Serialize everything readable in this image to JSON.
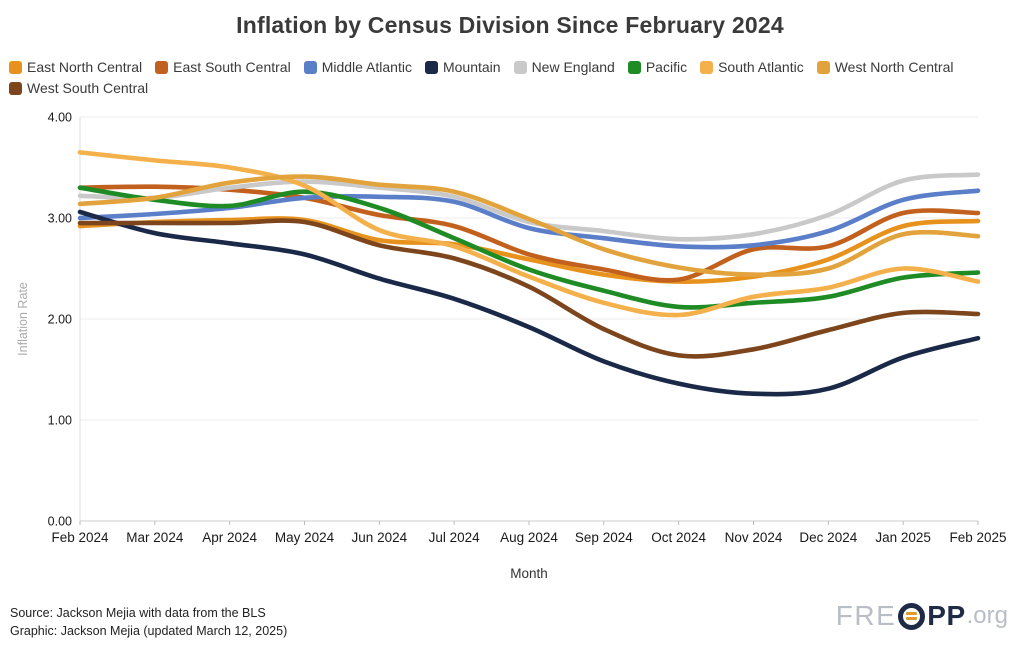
{
  "title": "Inflation by Census Division Since February 2024",
  "chart_data": {
    "type": "line",
    "x": [
      "Feb 2024",
      "Mar 2024",
      "Apr 2024",
      "May 2024",
      "Jun 2024",
      "Jul 2024",
      "Aug 2024",
      "Sep 2024",
      "Oct 2024",
      "Nov 2024",
      "Dec 2024",
      "Jan 2025",
      "Feb 2025"
    ],
    "series": [
      {
        "name": "East North Central",
        "color": "#e8921e",
        "values": [
          2.92,
          2.96,
          2.98,
          2.98,
          2.78,
          2.74,
          2.59,
          2.44,
          2.37,
          2.42,
          2.59,
          2.92,
          2.97
        ]
      },
      {
        "name": "East South Central",
        "color": "#c2611d",
        "values": [
          3.3,
          3.31,
          3.28,
          3.2,
          3.03,
          2.92,
          2.64,
          2.49,
          2.39,
          2.69,
          2.72,
          3.05,
          3.05
        ]
      },
      {
        "name": "Middle Atlantic",
        "color": "#5b7ec9",
        "values": [
          3.0,
          3.04,
          3.1,
          3.2,
          3.21,
          3.16,
          2.9,
          2.8,
          2.72,
          2.73,
          2.87,
          3.18,
          3.27
        ]
      },
      {
        "name": "Mountain",
        "color": "#1b2949",
        "values": [
          3.06,
          2.85,
          2.75,
          2.64,
          2.4,
          2.2,
          1.92,
          1.58,
          1.36,
          1.26,
          1.31,
          1.62,
          1.81
        ]
      },
      {
        "name": "New England",
        "color": "#c9c9c9",
        "values": [
          3.22,
          3.2,
          3.3,
          3.36,
          3.3,
          3.21,
          2.96,
          2.87,
          2.79,
          2.84,
          3.03,
          3.37,
          3.43
        ]
      },
      {
        "name": "Pacific",
        "color": "#1f8b24",
        "values": [
          3.3,
          3.18,
          3.12,
          3.26,
          3.1,
          2.8,
          2.49,
          2.28,
          2.12,
          2.16,
          2.22,
          2.41,
          2.46
        ]
      },
      {
        "name": "South Atlantic",
        "color": "#f4b04a",
        "values": [
          3.65,
          3.57,
          3.5,
          3.32,
          2.88,
          2.72,
          2.42,
          2.16,
          2.04,
          2.22,
          2.31,
          2.5,
          2.37
        ]
      },
      {
        "name": "West North Central",
        "color": "#e2a33c",
        "values": [
          3.14,
          3.2,
          3.35,
          3.41,
          3.33,
          3.26,
          2.99,
          2.69,
          2.51,
          2.44,
          2.5,
          2.84,
          2.82
        ]
      },
      {
        "name": "West South Central",
        "color": "#7d451b",
        "values": [
          2.95,
          2.95,
          2.95,
          2.96,
          2.73,
          2.6,
          2.32,
          1.9,
          1.64,
          1.7,
          1.89,
          2.06,
          2.05
        ]
      }
    ],
    "title": "Inflation by Census Division Since February 2024",
    "xlabel": "Month",
    "ylabel": "Inflation Rate",
    "ylim": [
      0,
      4
    ],
    "y_ticks": [
      "0.00",
      "1.00",
      "2.00",
      "3.00",
      "4.00"
    ],
    "grid": "horizontal, light gray, left vertical axis line",
    "legend_position": "top"
  },
  "footer": {
    "source_line": "Source: Jackson Mejia with data from the BLS",
    "graphic_line": "Graphic: Jackson Mejia (updated March 12, 2025)"
  },
  "logo": {
    "prefix": "FRE",
    "suffix": "PP",
    "domain_text": ".org",
    "navy": "#1f2a44",
    "gray": "#b9bec6",
    "orange": "#e09a2d"
  }
}
